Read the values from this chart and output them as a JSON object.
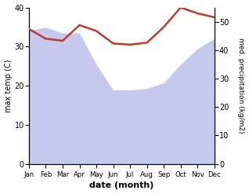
{
  "months": [
    "Jan",
    "Feb",
    "Mar",
    "Apr",
    "May",
    "Jun",
    "Jul",
    "Aug",
    "Sep",
    "Oct",
    "Nov",
    "Dec"
  ],
  "x": [
    0,
    1,
    2,
    3,
    4,
    5,
    6,
    7,
    8,
    9,
    10,
    11
  ],
  "temp": [
    34.5,
    32.0,
    31.5,
    35.5,
    34.0,
    30.8,
    30.5,
    31.0,
    35.0,
    40.0,
    38.5,
    37.5
  ],
  "precip": [
    47.0,
    48.0,
    46.0,
    46.0,
    35.0,
    26.0,
    26.0,
    26.5,
    28.5,
    35.0,
    40.5,
    44.0
  ],
  "temp_color": "#c0392b",
  "precip_fill_color": "#b0b8e8",
  "precip_fill_alpha": 0.75,
  "ylim_left": [
    0,
    40
  ],
  "ylim_right": [
    0,
    55
  ],
  "yticks_left": [
    0,
    10,
    20,
    30,
    40
  ],
  "yticks_right": [
    0,
    10,
    20,
    30,
    40,
    50
  ],
  "xlabel": "date (month)",
  "ylabel_left": "max temp (C)",
  "ylabel_right": "med. precipitation (kg/m2)",
  "bg_color": "#ffffff"
}
